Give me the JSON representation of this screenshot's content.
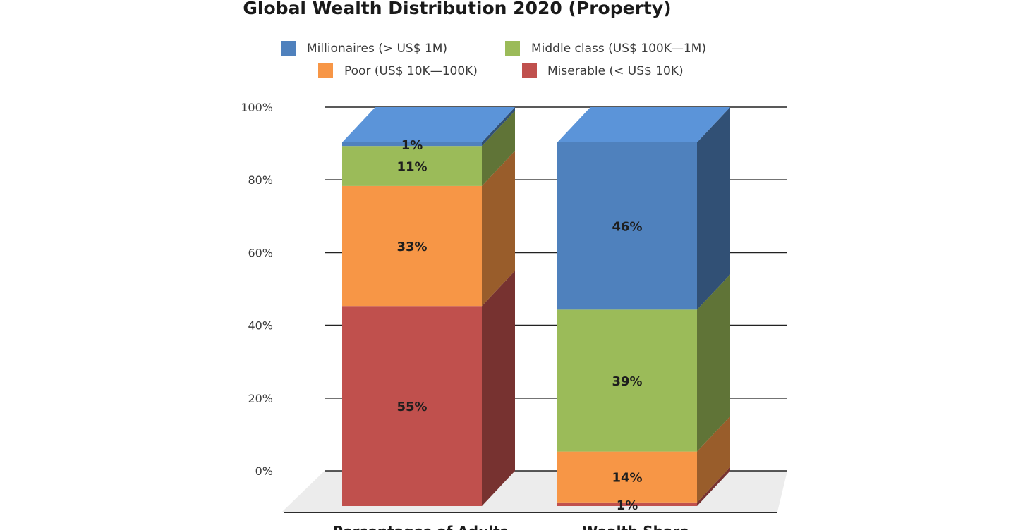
{
  "chart_data": {
    "type": "bar",
    "stacked": true,
    "three_d": true,
    "title": "Global Wealth Distribution 2020 (Property)",
    "categories": [
      "Percentages of Adults",
      "Wealth Share"
    ],
    "series": [
      {
        "name": "Millionaires (> US$ 1M)",
        "color": "#4f81bd",
        "values": [
          1,
          46
        ],
        "labels": [
          "1%",
          "46%"
        ]
      },
      {
        "name": "Middle class (US$ 100K—1M)",
        "color": "#9bbb59",
        "values": [
          11,
          39
        ],
        "labels": [
          "11%",
          "39%"
        ]
      },
      {
        "name": "Poor (US$ 10K—100K)",
        "color": "#f79646",
        "values": [
          33,
          14
        ],
        "labels": [
          "33%",
          "14%"
        ]
      },
      {
        "name": "Miserable (< US$ 10K)",
        "color": "#c0504d",
        "values": [
          55,
          1
        ],
        "labels": [
          "55%",
          "1%"
        ]
      }
    ],
    "stack_order": [
      "Miserable (< US$ 10K)",
      "Poor (US$ 10K—100K)",
      "Middle class (US$ 100K—1M)",
      "Millionaires (> US$ 1M)"
    ],
    "y_ticks": [
      "0%",
      "20%",
      "40%",
      "60%",
      "80%",
      "100%"
    ],
    "ylim": [
      0,
      100
    ],
    "grid": true,
    "legend_position": "top"
  }
}
